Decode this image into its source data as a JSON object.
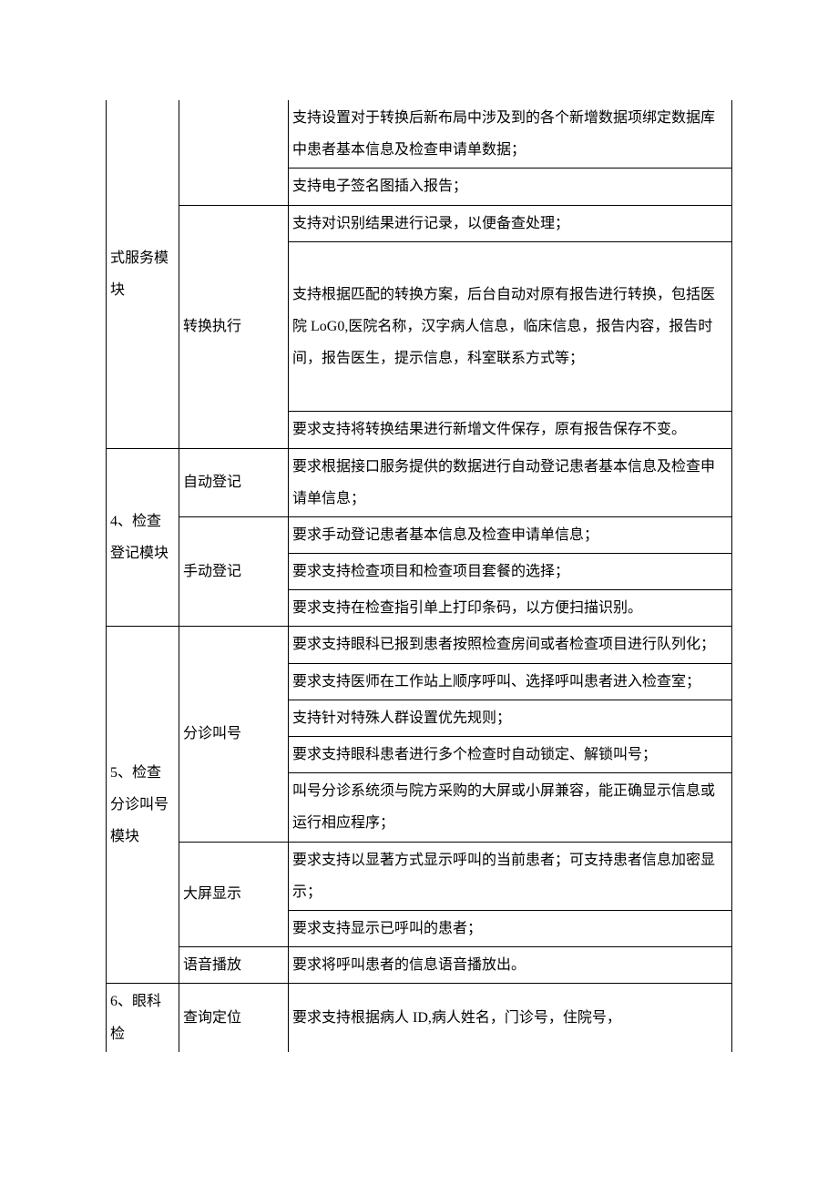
{
  "column_widths": {
    "module": 80,
    "feature": 120
  },
  "rows": [
    {
      "module": "式服务模块",
      "feature": "",
      "desc": "支持设置对于转换后新布局中涉及到的各个新增数据项绑定数据库中患者基本信息及检查申请单数据；"
    },
    {
      "desc": "支持电子签名图插入报告；"
    },
    {
      "feature": "转换执行",
      "desc": "支持对识别结果进行记录，以便备查处理；"
    },
    {
      "desc": "支持根据匹配的转换方案，后台自动对原有报告进行转换，包括医院 LoG0,医院名称，汉字病人信息，临床信息，报告内容，报告时间，报告医生，提示信息，科室联系方式等；"
    },
    {
      "desc": "要求支持将转换结果进行新增文件保存，原有报告保存不变。"
    },
    {
      "module": "4、检查登记模块",
      "feature": "自动登记",
      "desc": "要求根据接口服务提供的数据进行自动登记患者基本信息及检查申请单信息；"
    },
    {
      "feature": "手动登记",
      "desc": "要求手动登记患者基本信息及检查申请单信息；"
    },
    {
      "desc": "要求支持检查项目和检查项目套餐的选择；"
    },
    {
      "desc": "要求支持在检查指引单上打印条码，以方便扫描识别。"
    },
    {
      "module": "5、检查分诊叫号模块",
      "feature": "分诊叫号",
      "desc": "要求支持眼科已报到患者按照检查房间或者检查项目进行队列化；"
    },
    {
      "desc": "要求支持医师在工作站上顺序呼叫、选择呼叫患者进入检查室；"
    },
    {
      "desc": "支持针对特殊人群设置优先规则；"
    },
    {
      "desc": "要求支持眼科患者进行多个检查时自动锁定、解锁叫号；"
    },
    {
      "desc": "叫号分诊系统须与院方采购的大屏或小屏兼容，能正确显示信息或运行相应程序；"
    },
    {
      "feature": "大屏显示",
      "desc": "要求支持以显著方式显示呼叫的当前患者；可支持患者信息加密显示；"
    },
    {
      "desc": "要求支持显示已呼叫的患者；"
    },
    {
      "feature": "语音播放",
      "desc": "要求将呼叫患者的信息语音播放出。"
    },
    {
      "module": "6、眼科检",
      "feature": "查询定位",
      "desc": "要求支持根据病人 ID,病人姓名，门诊号，住院号，"
    }
  ]
}
